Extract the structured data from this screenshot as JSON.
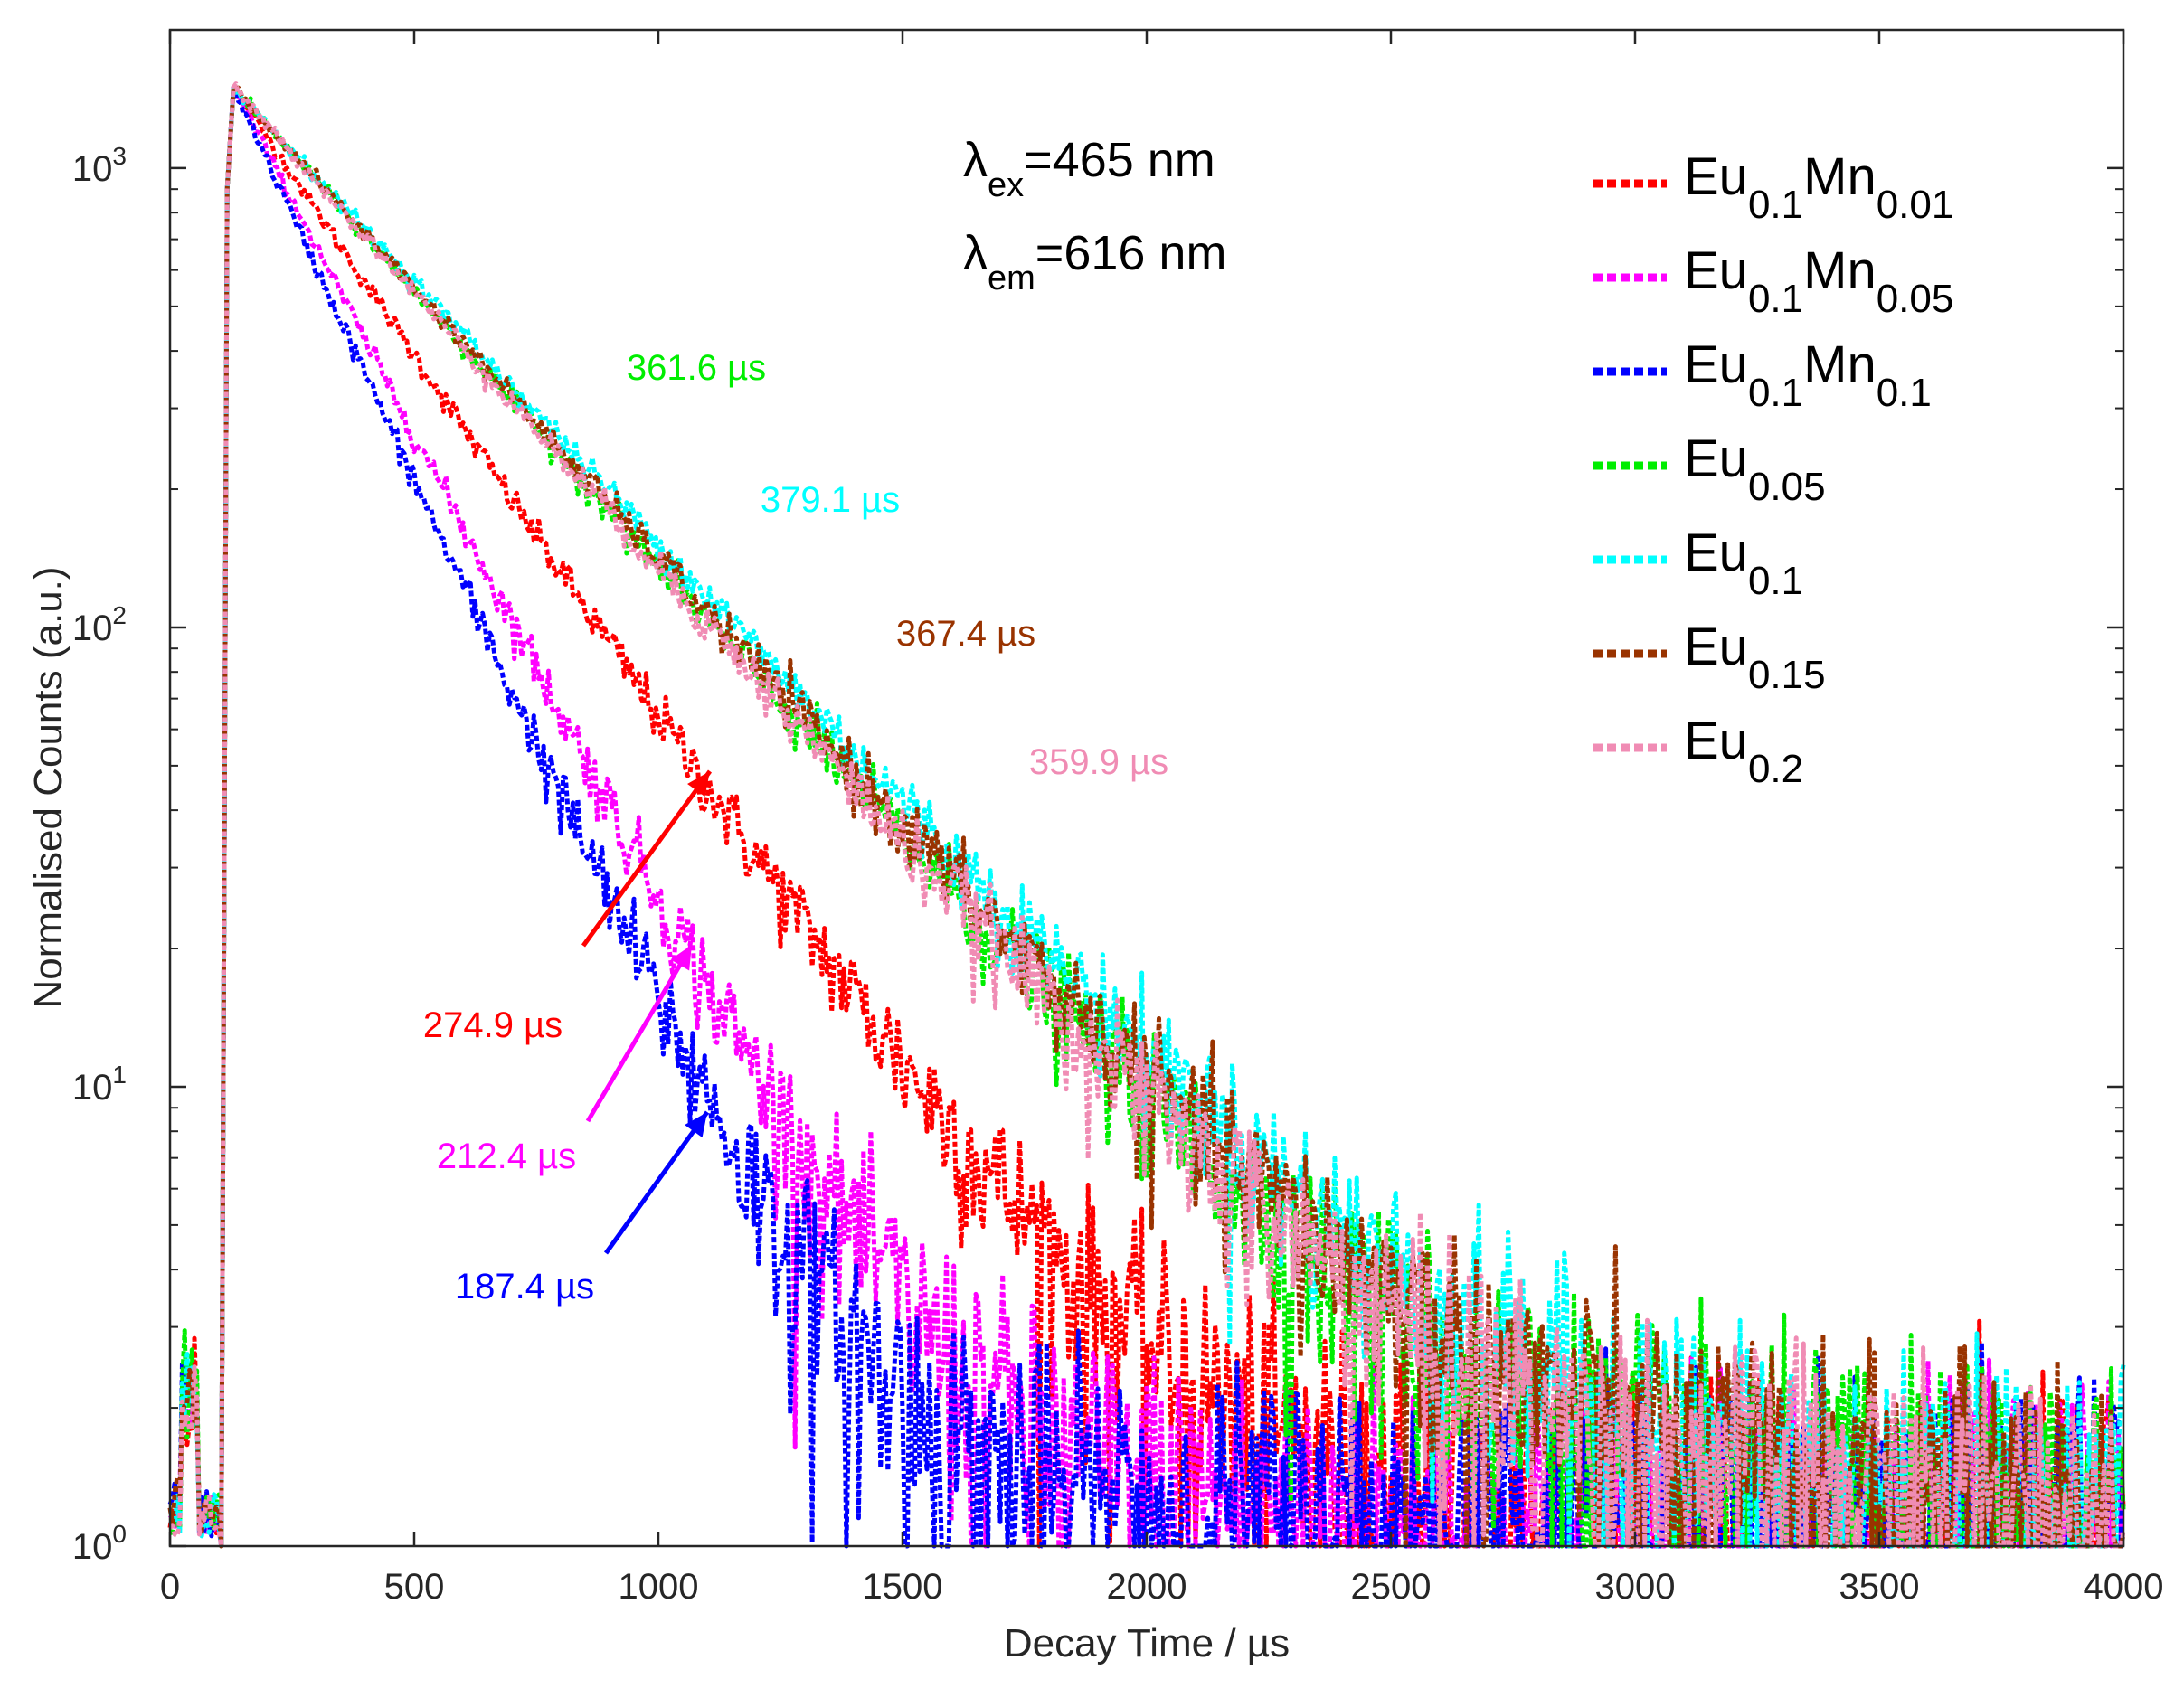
{
  "chart_data": {
    "type": "line",
    "xlabel": "Decay Time / µs",
    "ylabel": "Normalised Counts (a.u.)",
    "xlim": [
      0,
      4000
    ],
    "ylim": [
      1,
      2000
    ],
    "yscale": "log",
    "grid": false,
    "legend_position": "top-right",
    "x_ticks": [
      0,
      500,
      1000,
      1500,
      2000,
      2500,
      3000,
      3500,
      4000
    ],
    "y_ticks": [
      {
        "value": 1,
        "base": "10",
        "exp": "0"
      },
      {
        "value": 10,
        "base": "10",
        "exp": "1"
      },
      {
        "value": 100,
        "base": "10",
        "exp": "2"
      },
      {
        "value": 1000,
        "base": "10",
        "exp": "3"
      }
    ],
    "conditions": {
      "ex": {
        "main": "λ",
        "sub": "ex",
        "rest": "=465 nm"
      },
      "em": {
        "main": "λ",
        "sub": "em",
        "rest": "=616 nm"
      }
    },
    "series": [
      {
        "main": "Eu",
        "sub1": "0.1",
        "mid": "Mn",
        "sub2": "0.01",
        "color": "#ff0000",
        "lifetime_us": 274.9,
        "label": "274.9 µs"
      },
      {
        "main": "Eu",
        "sub1": "0.1",
        "mid": "Mn",
        "sub2": "0.05",
        "color": "#ff00ff",
        "lifetime_us": 212.4,
        "label": "212.4 µs"
      },
      {
        "main": "Eu",
        "sub1": "0.1",
        "mid": "Mn",
        "sub2": "0.1",
        "color": "#0000ff",
        "lifetime_us": 187.4,
        "label": "187.4 µs"
      },
      {
        "main": "Eu",
        "sub1": "0.05",
        "mid": "",
        "sub2": "",
        "color": "#00ee00",
        "lifetime_us": 361.6,
        "label": "361.6 µs"
      },
      {
        "main": "Eu",
        "sub1": "0.1",
        "mid": "",
        "sub2": "",
        "color": "#00ffff",
        "lifetime_us": 379.1,
        "label": "379.1 µs"
      },
      {
        "main": "Eu",
        "sub1": "0.15",
        "mid": "",
        "sub2": "",
        "color": "#993300",
        "lifetime_us": 367.4,
        "label": "367.4 µs"
      },
      {
        "main": "Eu",
        "sub1": "0.2",
        "mid": "",
        "sub2": "",
        "color": "#f08cb4",
        "lifetime_us": 359.9,
        "label": "359.9 µs"
      }
    ],
    "peak": {
      "x": 130,
      "y": 1500
    },
    "onset_x": 105
  }
}
